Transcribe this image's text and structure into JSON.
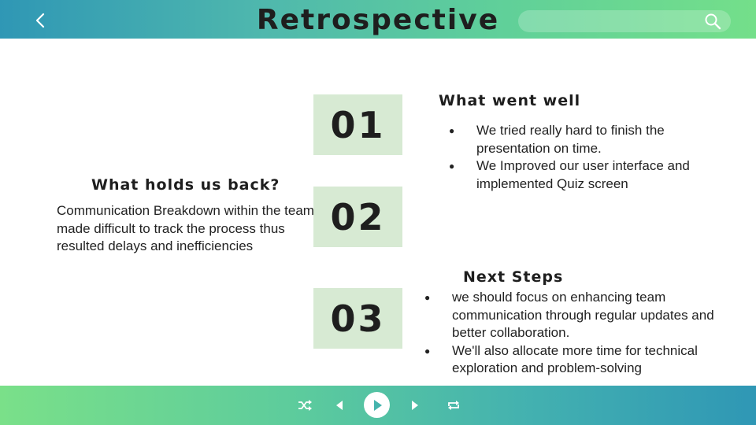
{
  "header": {
    "title": "Retrospective",
    "search_placeholder": "",
    "back_icon": "chevron-left-icon",
    "search_icon": "search-icon"
  },
  "sections": {
    "num1": "01",
    "num2": "02",
    "num3": "03",
    "went_well": {
      "heading": "What went well",
      "items": [
        "We tried really hard to finish the presentation on time.",
        "We Improved our user interface and implemented Quiz screen"
      ]
    },
    "holds_back": {
      "heading": "What holds us back?",
      "text": "Communication Breakdown within the team made difficult to track the process thus resulted delays and inefficiencies"
    },
    "next_steps": {
      "heading": "Next Steps",
      "items": [
        "we should focus on enhancing team communication through regular updates and better collaboration.",
        "We'll also allocate more time for technical exploration and problem-solving"
      ]
    }
  },
  "player": {
    "icons": [
      "shuffle-icon",
      "previous-icon",
      "play-icon",
      "next-icon",
      "repeat-icon"
    ]
  },
  "colors": {
    "number_box": "#d7ead3",
    "bar_blue": "#2f97b5",
    "bar_green": "#74df8a"
  }
}
